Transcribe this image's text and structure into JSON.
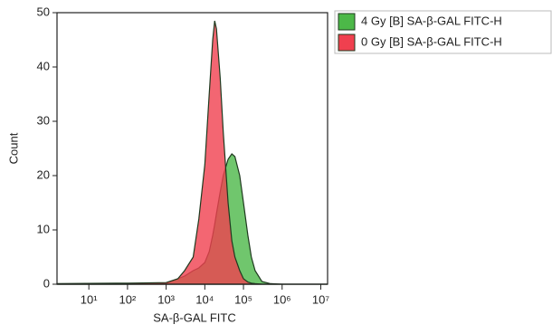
{
  "chart_data": {
    "type": "area",
    "x_label": "SA-β-GAL FITC",
    "y_label": "Count",
    "xscale": "log",
    "x": [
      1.5,
      100,
      1000,
      2000,
      3000,
      5000,
      7000,
      10000,
      13000,
      16000,
      18000,
      20000,
      25000,
      30000,
      40000,
      50000,
      60000,
      80000,
      100000,
      130000,
      160000,
      200000,
      300000,
      500000,
      1000000,
      15000000
    ],
    "series": [
      {
        "name": "4 Gy [B] SA-β-GAL FITC-H",
        "color": "#4cb848",
        "values": [
          0,
          0,
          0.2,
          1,
          1.5,
          2.5,
          3,
          4,
          6,
          9,
          11,
          13,
          17,
          20,
          23,
          24,
          23.5,
          20,
          15,
          9,
          5,
          2.5,
          0.5,
          0.1,
          0,
          0
        ]
      },
      {
        "name": "0 Gy [B] SA-β-GAL FITC-H",
        "color": "#f0404f",
        "values": [
          0.1,
          0.2,
          0.3,
          1,
          2.5,
          5,
          12,
          22,
          35,
          45,
          48.5,
          47,
          38,
          28,
          15,
          8,
          5,
          2.5,
          1,
          0.4,
          0.2,
          0.1,
          0,
          0,
          0,
          0
        ]
      }
    ],
    "xlim": [
      1.5,
      15000000
    ],
    "xticks": [
      {
        "value": 10,
        "label": "10¹"
      },
      {
        "value": 100,
        "label": "10²"
      },
      {
        "value": 1000,
        "label": "10³"
      },
      {
        "value": 10000,
        "label": "10⁴"
      },
      {
        "value": 100000,
        "label": "10⁵"
      },
      {
        "value": 1000000,
        "label": "10⁶"
      },
      {
        "value": 10000000,
        "label": "10⁷"
      }
    ],
    "ylim": [
      0,
      50
    ],
    "yticks": [
      0,
      10,
      20,
      30,
      40,
      50
    ],
    "legend": "right"
  }
}
